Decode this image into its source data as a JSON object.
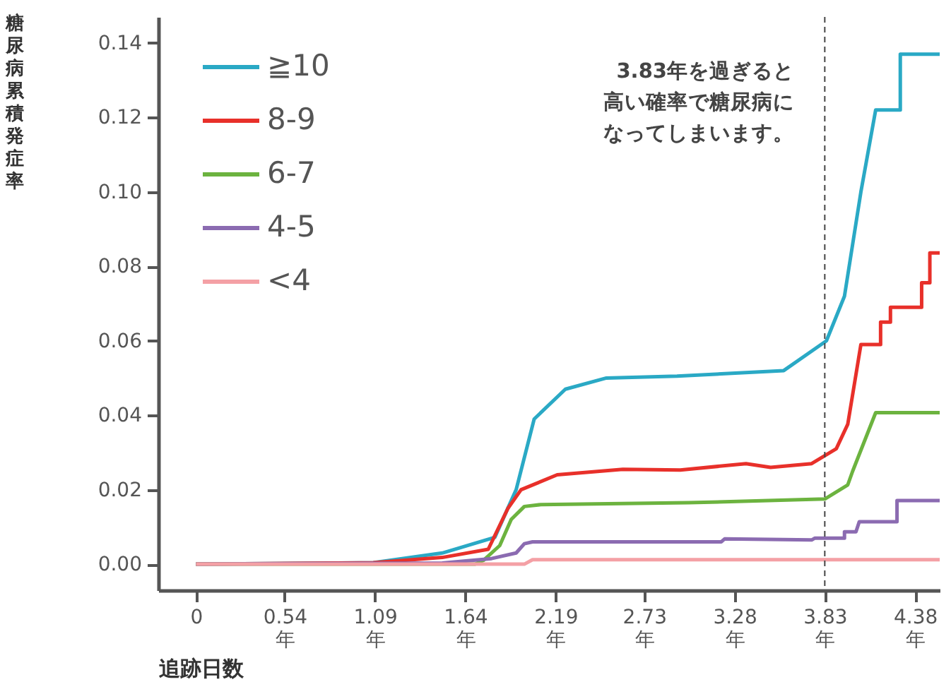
{
  "chart_data": {
    "type": "line",
    "ylabel": "糖尿病累積発症率",
    "xlabel": "追跡日数",
    "xlim": [
      -0.23,
      4.53
    ],
    "ylim": [
      -0.007,
      0.147
    ],
    "xticks": [
      0,
      {
        "value": 0.54,
        "label": "0.54\n年"
      },
      {
        "value": 1.09,
        "label": "1.09\n年"
      },
      {
        "value": 1.64,
        "label": "1.64\n年"
      },
      {
        "value": 2.19,
        "label": "2.19\n年"
      },
      {
        "value": 2.73,
        "label": "2.73\n年"
      },
      {
        "value": 3.28,
        "label": "3.28\n年"
      },
      {
        "value": 3.83,
        "label": "3.83\n年"
      },
      {
        "value": 4.38,
        "label": "4.38\n年"
      }
    ],
    "yticks": [
      {
        "value": 0,
        "label": "0.00"
      },
      {
        "value": 0.02,
        "label": "0.02"
      },
      {
        "value": 0.04,
        "label": "0.04"
      },
      {
        "value": 0.06,
        "label": "0.06"
      },
      {
        "value": 0.08,
        "label": "0.08"
      },
      {
        "value": 0.1,
        "label": "0.10"
      },
      {
        "value": 0.12,
        "label": "0.12"
      },
      {
        "value": 0.14,
        "label": "0.14"
      }
    ],
    "grid": false,
    "legend": "top left",
    "marker": "none",
    "line_style": "solid",
    "series": [
      {
        "name": "≧10",
        "color": "#2aa9c5",
        "x": [
          0,
          1.08,
          1.5,
          1.82,
          1.95,
          2.06,
          2.25,
          2.5,
          2.93,
          3.58,
          3.84,
          3.95,
          4.05,
          4.14,
          4.29,
          4.29,
          4.53
        ],
        "values": [
          0,
          0.0004,
          0.003,
          0.0072,
          0.02,
          0.039,
          0.047,
          0.05,
          0.0505,
          0.052,
          0.06,
          0.072,
          0.1,
          0.122,
          0.122,
          0.137,
          0.137
        ]
      },
      {
        "name": "8-9",
        "color": "#e8302a",
        "x": [
          0,
          1.08,
          1.5,
          1.78,
          1.9,
          1.98,
          2.2,
          2.6,
          2.95,
          3.35,
          3.5,
          3.75,
          3.9,
          3.97,
          4.05,
          4.05,
          4.17,
          4.17,
          4.23,
          4.23,
          4.42,
          4.42,
          4.47,
          4.47,
          4.53
        ],
        "values": [
          0,
          0.0004,
          0.0018,
          0.004,
          0.015,
          0.02,
          0.024,
          0.0255,
          0.0253,
          0.027,
          0.026,
          0.027,
          0.031,
          0.0376,
          0.059,
          0.059,
          0.059,
          0.065,
          0.065,
          0.069,
          0.069,
          0.0756,
          0.0756,
          0.0836,
          0.0836
        ]
      },
      {
        "name": "6-7",
        "color": "#6cb33f",
        "x": [
          0,
          1.7,
          1.75,
          1.85,
          1.92,
          2.0,
          2.1,
          3.0,
          3.83,
          3.97,
          4.0,
          4.14,
          4.53
        ],
        "values": [
          0,
          0,
          0.001,
          0.005,
          0.012,
          0.0155,
          0.016,
          0.0165,
          0.0175,
          0.0213,
          0.025,
          0.0407,
          0.0407
        ]
      },
      {
        "name": "4-5",
        "color": "#8b6bb1",
        "x": [
          0,
          1.5,
          1.8,
          1.95,
          2.0,
          2.05,
          3.2,
          3.22,
          3.75,
          3.77,
          3.95,
          3.95,
          4.02,
          4.04,
          4.27,
          4.27,
          4.53
        ],
        "values": [
          0,
          0.0003,
          0.0015,
          0.003,
          0.0055,
          0.006,
          0.006,
          0.0068,
          0.0065,
          0.007,
          0.007,
          0.0087,
          0.0087,
          0.0114,
          0.0114,
          0.0171,
          0.0171
        ]
      },
      {
        "name": "<4",
        "color": "#f4a0a5",
        "x": [
          0,
          2.0,
          2.05,
          4.53
        ],
        "values": [
          0,
          0,
          0.0012,
          0.0012
        ]
      }
    ],
    "ref_lines": [
      {
        "axis": "x",
        "value": 3.83,
        "label": null,
        "color": "#444444",
        "line_style": "dashed"
      }
    ],
    "annotations": [
      "3.83年を過ぎると",
      "高い確率で糖尿病に",
      "なってしまいます。"
    ]
  }
}
